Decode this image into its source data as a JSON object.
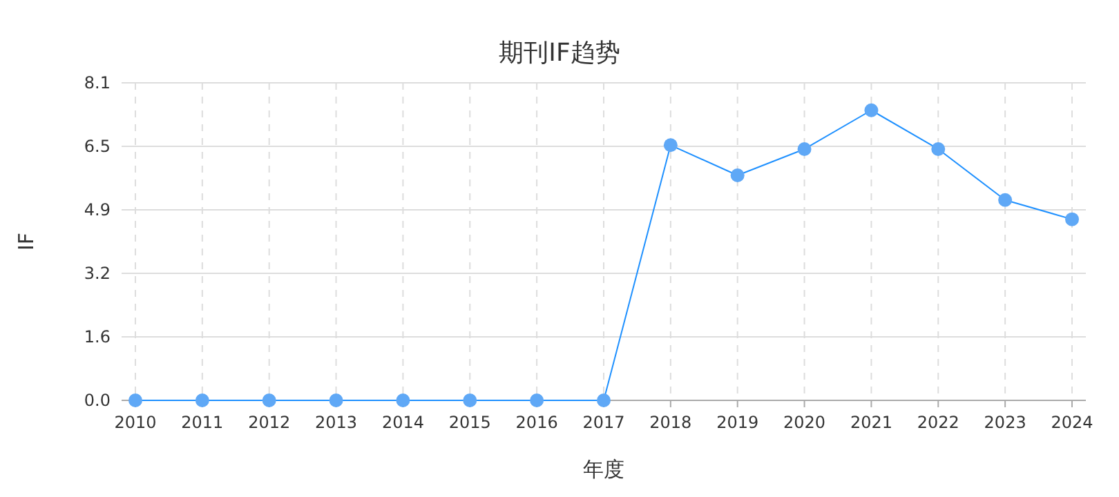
{
  "chart_data": {
    "type": "line",
    "title": "期刊IF趋势",
    "xlabel": "年度",
    "ylabel": "IF",
    "categories": [
      "2010",
      "2011",
      "2012",
      "2013",
      "2014",
      "2015",
      "2016",
      "2017",
      "2018",
      "2019",
      "2020",
      "2021",
      "2022",
      "2023",
      "2024"
    ],
    "series": [
      {
        "color": "#1e90ff",
        "values": [
          0,
          0,
          0,
          0,
          0,
          0,
          0,
          0,
          6.51,
          5.74,
          6.41,
          7.4,
          6.41,
          5.11,
          4.62
        ]
      }
    ],
    "ylim": [
      0,
      8.1
    ],
    "yticks": [
      {
        "value": 0,
        "label": "0.0"
      },
      {
        "value": 1.62,
        "label": "1.6"
      },
      {
        "value": 3.24,
        "label": "3.2"
      },
      {
        "value": 4.86,
        "label": "4.9"
      },
      {
        "value": 6.48,
        "label": "6.5"
      },
      8.1
    ],
    "grid": true,
    "marker": "circle",
    "line_style": "solid"
  }
}
